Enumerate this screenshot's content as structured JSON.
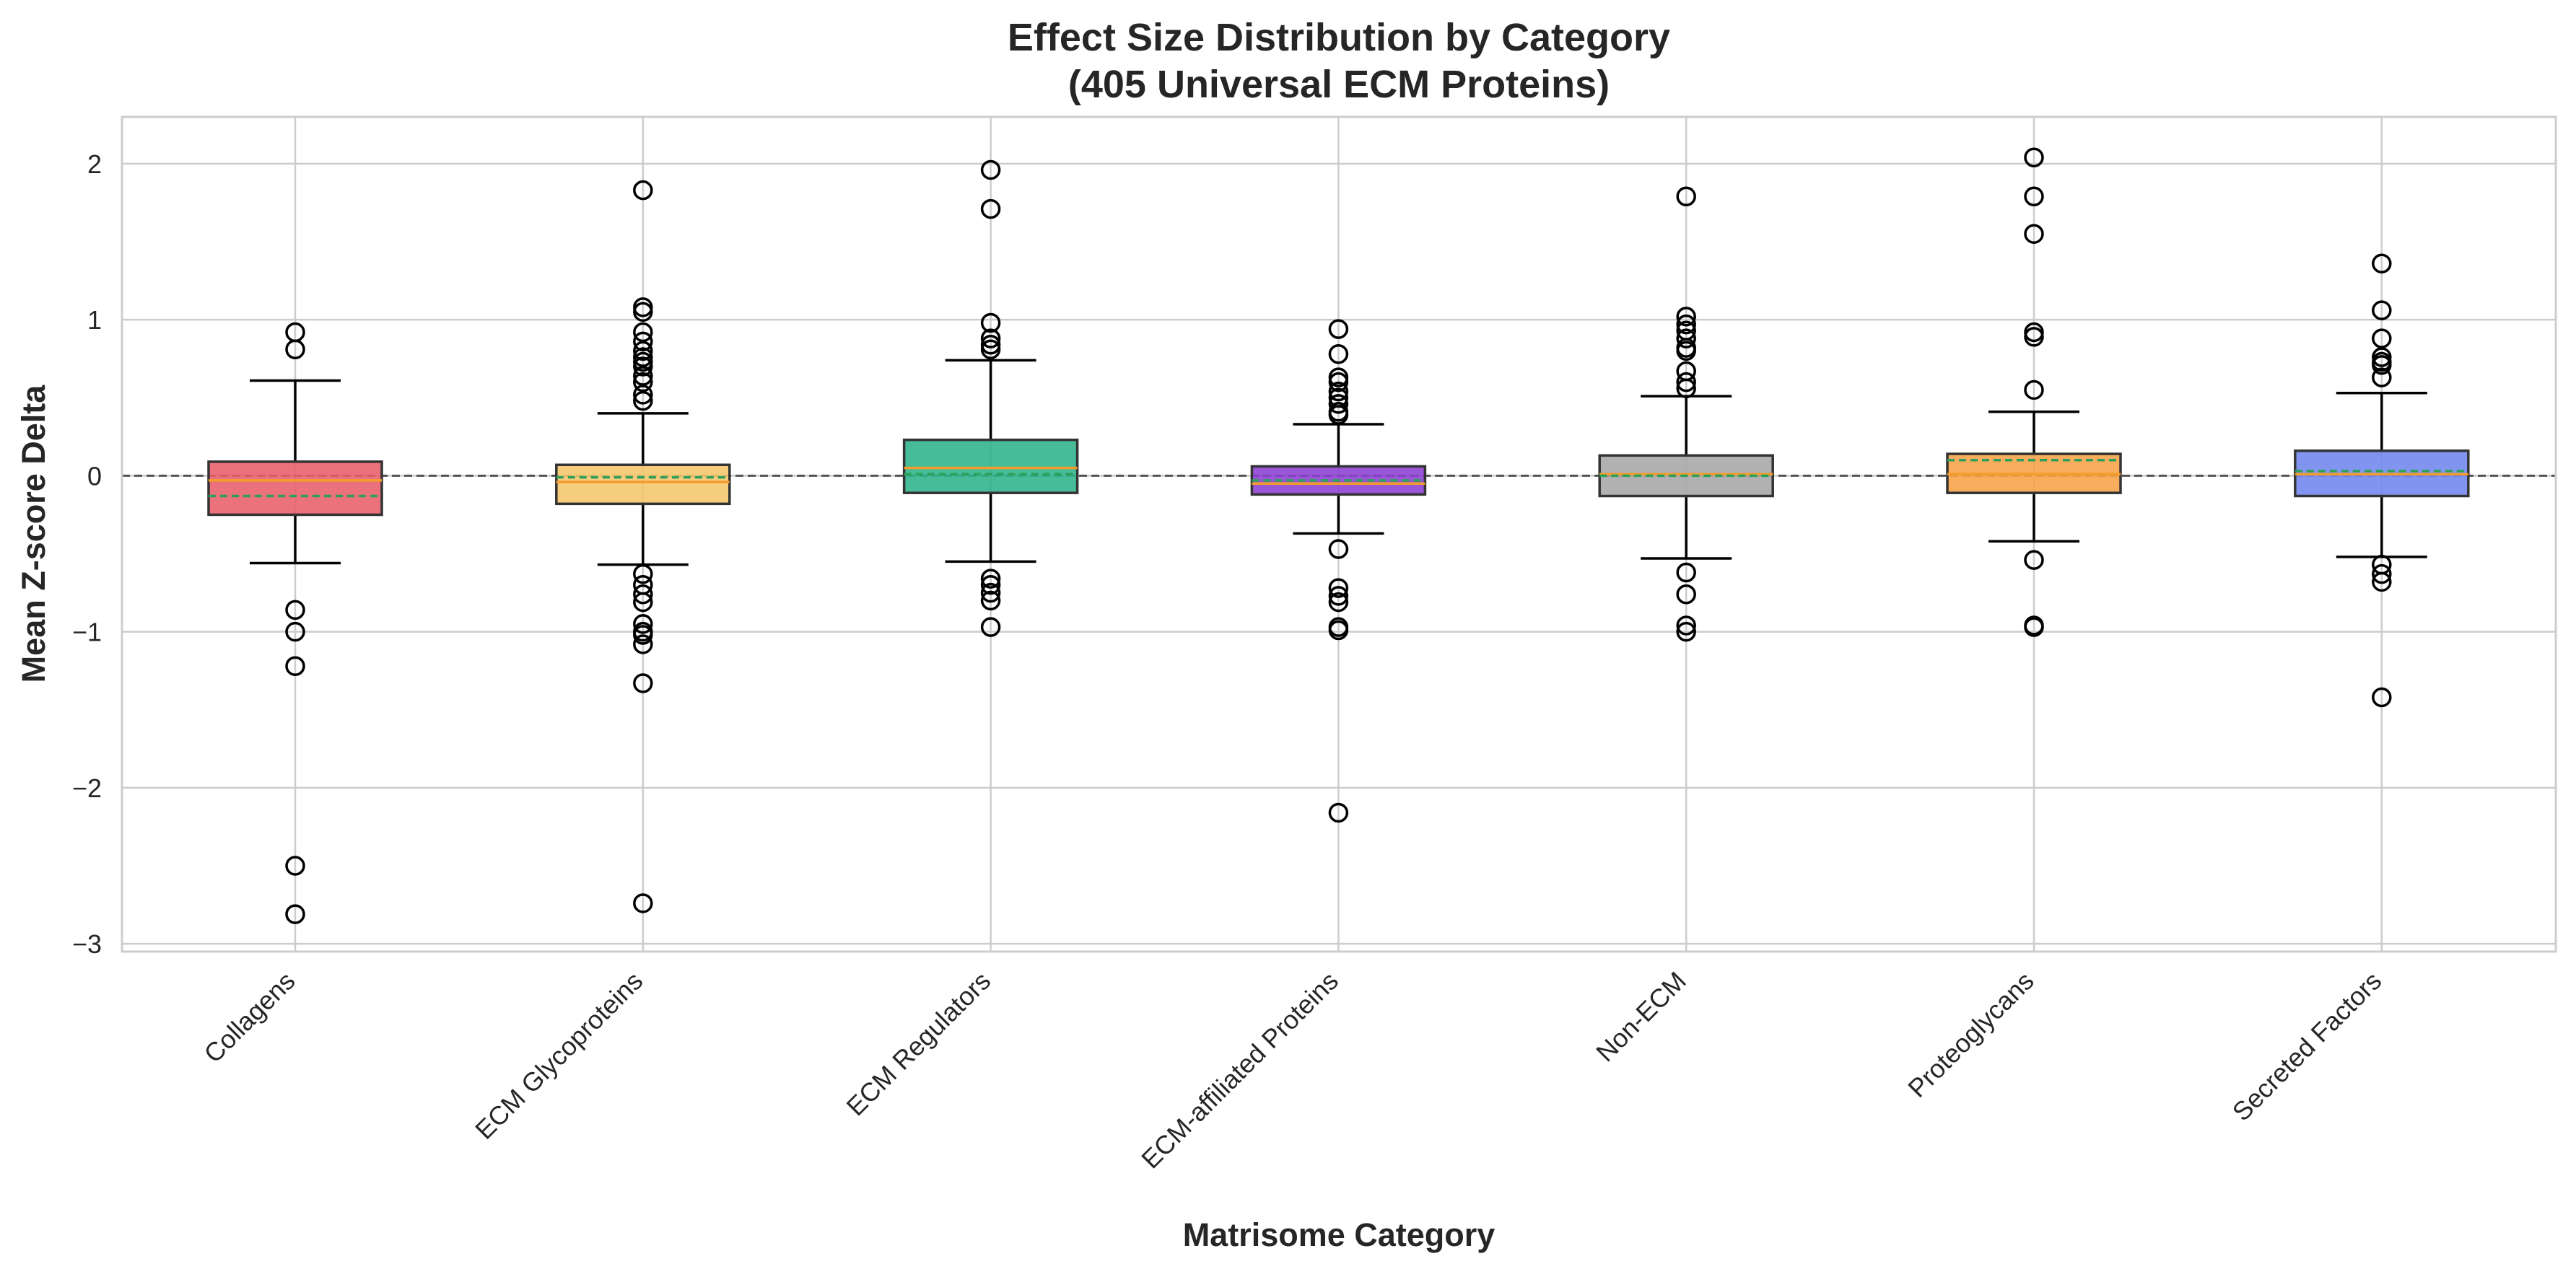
{
  "chart_data": {
    "type": "box",
    "title_lines": [
      "Effect Size Distribution by Category",
      "(405 Universal ECM Proteins)"
    ],
    "xlabel": "Matrisome Category",
    "ylabel": "Mean Z-score Delta",
    "ylim": [
      -3.05,
      2.3
    ],
    "yticks": [
      2,
      1,
      0,
      -1,
      -2,
      -3
    ],
    "ytick_labels": [
      "2",
      "1",
      "0",
      "−1",
      "−2",
      "−3"
    ],
    "grid": true,
    "reference_line": 0,
    "categories": [
      "Collagens",
      "ECM Glycoproteins",
      "ECM Regulators",
      "ECM-affiliated Proteins",
      "Non-ECM",
      "Proteoglycans",
      "Secreted Factors"
    ],
    "boxes": [
      {
        "category": "Collagens",
        "color": "#e85d6a",
        "q1": -0.25,
        "median": -0.03,
        "q3": 0.09,
        "mean": -0.13,
        "whisker_low": -0.56,
        "whisker_high": 0.61,
        "outliers": [
          0.92,
          0.81,
          -0.86,
          -1.0,
          -1.22,
          -2.5,
          -2.81
        ]
      },
      {
        "category": "ECM Glycoproteins",
        "color": "#f5c56b",
        "q1": -0.18,
        "median": -0.04,
        "q3": 0.07,
        "mean": -0.01,
        "whisker_low": -0.57,
        "whisker_high": 0.4,
        "outliers": [
          1.83,
          1.08,
          1.05,
          0.92,
          0.86,
          0.8,
          0.76,
          0.73,
          0.7,
          0.64,
          0.6,
          0.52,
          0.48,
          -0.63,
          -0.7,
          -0.76,
          -0.81,
          -0.95,
          -1.0,
          -1.02,
          -1.08,
          -1.33,
          -2.74
        ]
      },
      {
        "category": "ECM Regulators",
        "color": "#2db38a",
        "q1": -0.11,
        "median": 0.05,
        "q3": 0.23,
        "mean": 0.01,
        "whisker_low": -0.55,
        "whisker_high": 0.74,
        "outliers": [
          1.96,
          1.71,
          0.98,
          0.88,
          0.84,
          0.81,
          -0.66,
          -0.7,
          -0.75,
          -0.8,
          -0.97
        ]
      },
      {
        "category": "ECM-affiliated Proteins",
        "color": "#8b3fd1",
        "q1": -0.12,
        "median": -0.05,
        "q3": 0.06,
        "mean": -0.03,
        "whisker_low": -0.37,
        "whisker_high": 0.33,
        "outliers": [
          0.94,
          0.78,
          0.63,
          0.6,
          0.54,
          0.5,
          0.46,
          0.41,
          0.39,
          -0.47,
          -0.72,
          -0.77,
          -0.81,
          -0.97,
          -0.99,
          -2.16
        ]
      },
      {
        "category": "Non-ECM",
        "color": "#a6a6a6",
        "q1": -0.13,
        "median": 0.01,
        "q3": 0.13,
        "mean": 0.0,
        "whisker_low": -0.53,
        "whisker_high": 0.51,
        "outliers": [
          1.79,
          1.02,
          0.97,
          0.93,
          0.88,
          0.82,
          0.8,
          0.67,
          0.6,
          0.56,
          -0.62,
          -0.76,
          -0.96,
          -1.0
        ]
      },
      {
        "category": "Proteoglycans",
        "color": "#f7a245",
        "q1": -0.11,
        "median": 0.01,
        "q3": 0.14,
        "mean": 0.1,
        "whisker_low": -0.42,
        "whisker_high": 0.41,
        "outliers": [
          2.04,
          1.79,
          1.55,
          0.92,
          0.89,
          0.55,
          -0.54,
          -0.96,
          -0.97
        ]
      },
      {
        "category": "Secreted Factors",
        "color": "#6e85ee",
        "q1": -0.13,
        "median": 0.01,
        "q3": 0.16,
        "mean": 0.03,
        "whisker_low": -0.52,
        "whisker_high": 0.53,
        "outliers": [
          1.36,
          1.06,
          0.88,
          0.76,
          0.73,
          0.71,
          0.63,
          -0.57,
          -0.63,
          -0.68,
          -1.42
        ]
      }
    ],
    "median_color": "#f39c2a",
    "mean_color": "#2ca05a"
  }
}
